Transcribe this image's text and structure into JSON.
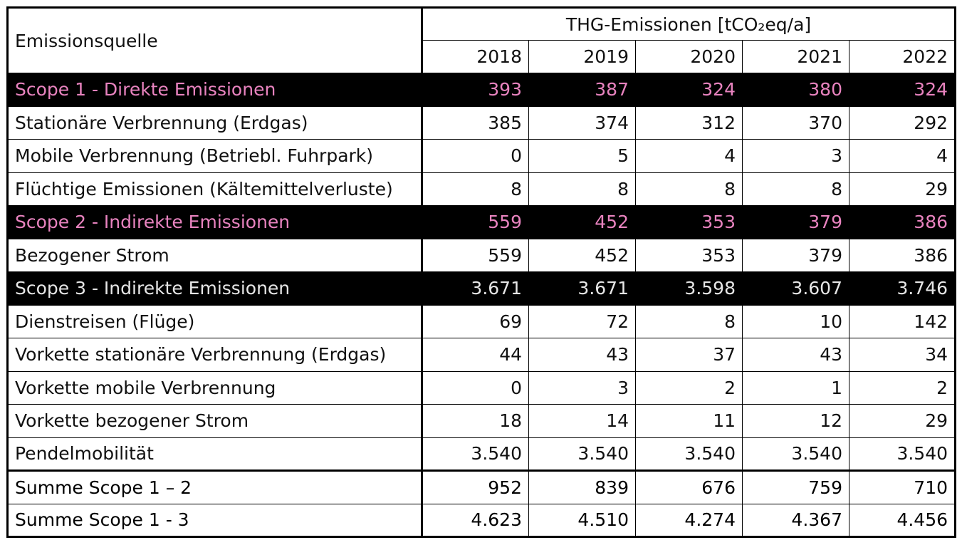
{
  "header": {
    "title": "Emissionsquelle",
    "group": "THG-Emissionen [tCO₂eq/a]",
    "years": [
      "2018",
      "2019",
      "2020",
      "2021",
      "2022"
    ]
  },
  "table": {
    "rows": [
      {
        "label": "Scope 1 - Direkte Emissionen",
        "values": [
          "393",
          "387",
          "324",
          "380",
          "324"
        ],
        "background": "#000000",
        "color": "#e883bf"
      },
      {
        "label": "Stationäre Verbrennung (Erdgas)",
        "values": [
          "385",
          "374",
          "312",
          "370",
          "292"
        ]
      },
      {
        "label": "Mobile Verbrennung (Betriebl. Fuhrpark)",
        "values": [
          "0",
          "5",
          "4",
          "3",
          "4"
        ]
      },
      {
        "label": "Flüchtige Emissionen (Kältemittelverluste)",
        "values": [
          "8",
          "8",
          "8",
          "8",
          "29"
        ]
      },
      {
        "label": "Scope 2 - Indirekte Emissionen",
        "values": [
          "559",
          "452",
          "353",
          "379",
          "386"
        ],
        "background": "#000000",
        "color": "#e883bf"
      },
      {
        "label": "Bezogener Strom",
        "values": [
          "559",
          "452",
          "353",
          "379",
          "386"
        ]
      },
      {
        "label": "Scope 3 - Indirekte Emissionen",
        "values": [
          "3.671",
          "3.671",
          "3.598",
          "3.607",
          "3.746"
        ],
        "background": "#000000",
        "color": "#e6e6e6"
      },
      {
        "label": "Dienstreisen (Flüge)",
        "values": [
          "69",
          "72",
          "8",
          "10",
          "142"
        ]
      },
      {
        "label": "Vorkette stationäre Verbrennung (Erdgas)",
        "values": [
          "44",
          "43",
          "37",
          "43",
          "34"
        ]
      },
      {
        "label": "Vorkette mobile Verbrennung",
        "values": [
          "0",
          "3",
          "2",
          "1",
          "2"
        ]
      },
      {
        "label": "Vorkette bezogener Strom",
        "values": [
          "18",
          "14",
          "11",
          "12",
          "29"
        ]
      },
      {
        "label": "Pendelmobilität",
        "values": [
          "3.540",
          "3.540",
          "3.540",
          "3.540",
          "3.540"
        ]
      },
      {
        "label": "Summe Scope 1 – 2",
        "values": [
          "952",
          "839",
          "676",
          "759",
          "710"
        ],
        "bold": true,
        "separator": true
      },
      {
        "label": "Summe Scope 1 - 3",
        "values": [
          "4.623",
          "4.510",
          "4.274",
          "4.367",
          "4.456"
        ],
        "bold": true
      }
    ]
  }
}
